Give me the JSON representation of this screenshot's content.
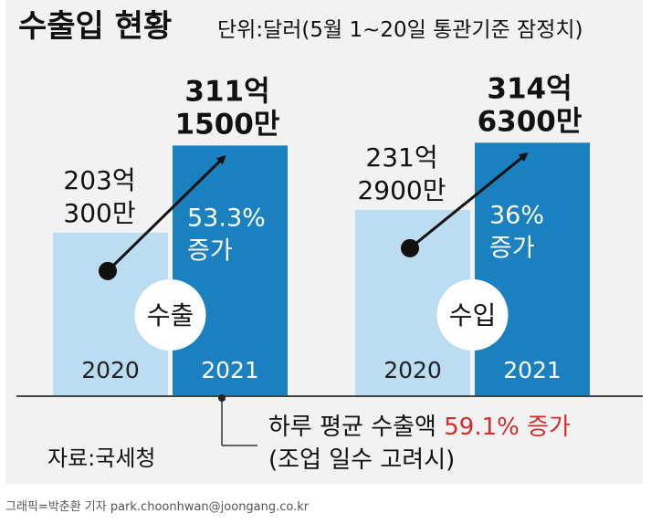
{
  "chart_data": {
    "type": "bar",
    "title": "수출입 현황",
    "subtitle": "단위:달러(5월 1~20일 통관기준 잠정치)",
    "groups": [
      {
        "name": "수출",
        "bars": [
          {
            "year": "2020",
            "value": 203.03,
            "label_line1": "203억",
            "label_line2": "300만"
          },
          {
            "year": "2021",
            "value": 311.15,
            "label_line1": "311억",
            "label_line2": "1500만"
          }
        ],
        "growth_line1": "53.3%",
        "growth_line2": "증가"
      },
      {
        "name": "수입",
        "bars": [
          {
            "year": "2020",
            "value": 231.29,
            "label_line1": "231억",
            "label_line2": "2900만"
          },
          {
            "year": "2021",
            "value": 314.63,
            "label_line1": "314억",
            "label_line2": "6300만"
          }
        ],
        "growth_line1": "36%",
        "growth_line2": "증가"
      }
    ],
    "ylim": [
      0,
      320
    ],
    "colors": {
      "bar_2020": "#bcdcf1",
      "bar_2021": "#1a80c0",
      "accent_red": "#d62b2b"
    },
    "annotation": {
      "text_main": "하루 평균 수출액 ",
      "text_highlight": "59.1% 증가",
      "text_sub": "(조업 일수 고려시)"
    },
    "source": "자료:국세청"
  },
  "credit": "그래픽=박춘환 기자 park.choonhwan@joongang.co.kr"
}
